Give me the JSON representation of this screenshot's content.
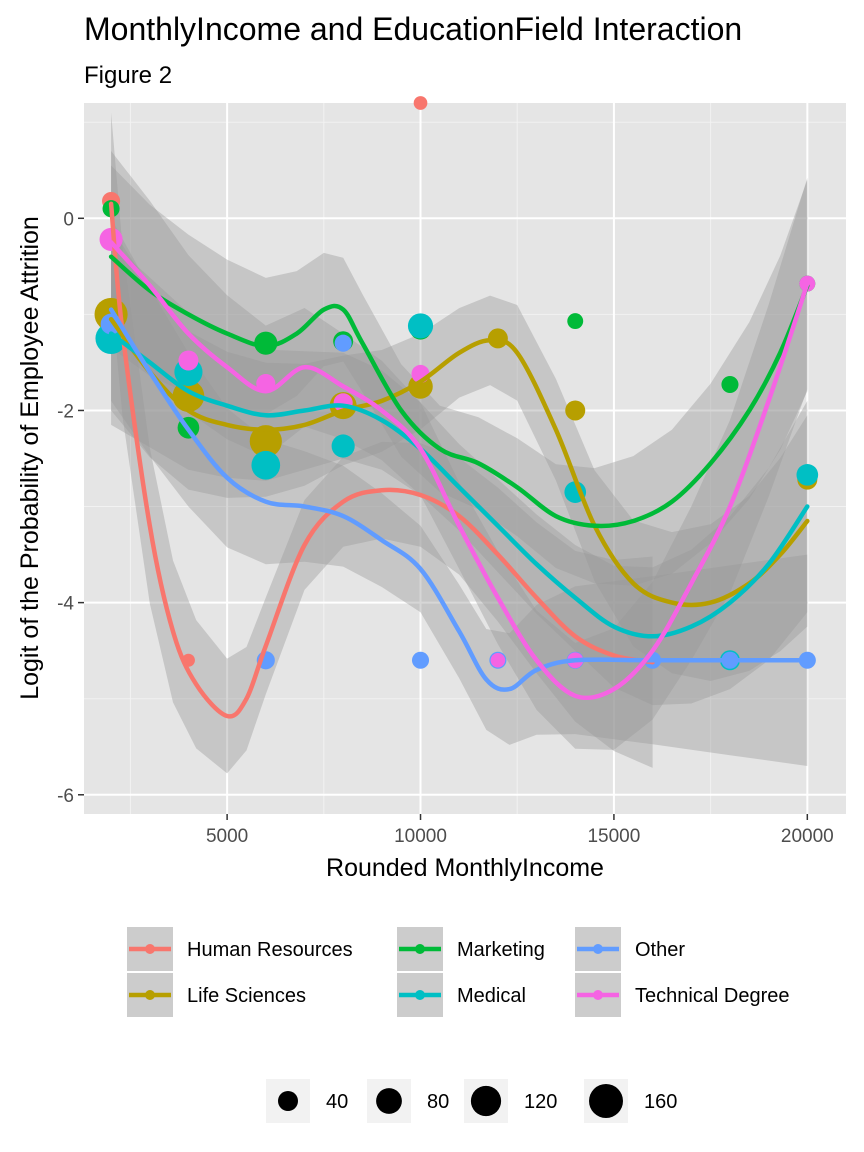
{
  "chart_data": {
    "type": "scatter",
    "title": "MonthlyIncome and EducationField Interaction",
    "subtitle": "Figure 2",
    "xlabel": "Rounded MonthlyIncome",
    "ylabel": "Logit of the Probability of Employee Attrition",
    "xlim": [
      1300,
      21000
    ],
    "ylim": [
      -6.2,
      1.2
    ],
    "x_ticks": [
      5000,
      10000,
      15000,
      20000
    ],
    "x_tick_labels": [
      "5000",
      "10000",
      "15000",
      "20000"
    ],
    "y_ticks": [
      -6,
      -4,
      -2,
      0
    ],
    "y_tick_labels": [
      "-6",
      "-4",
      "-2",
      "0"
    ],
    "grid": true,
    "background": "#e5e5e5",
    "legend_position": "bottom",
    "series": [
      {
        "name": "Human Resources",
        "color": "#f8766d",
        "points": [
          {
            "x": 2000,
            "y": 0.18,
            "n": 30
          },
          {
            "x": 4000,
            "y": -4.6,
            "n": 10
          },
          {
            "x": 10000,
            "y": 1.2,
            "n": 12
          }
        ],
        "smooth": [
          {
            "x": 2000,
            "y": 0.15
          },
          {
            "x": 2300,
            "y": -1.2
          },
          {
            "x": 3000,
            "y": -3.2
          },
          {
            "x": 3600,
            "y": -4.3
          },
          {
            "x": 4200,
            "y": -4.85
          },
          {
            "x": 5000,
            "y": -5.18
          },
          {
            "x": 5500,
            "y": -5.0
          },
          {
            "x": 6000,
            "y": -4.45
          },
          {
            "x": 7000,
            "y": -3.4
          },
          {
            "x": 8000,
            "y": -2.95
          },
          {
            "x": 9000,
            "y": -2.83
          },
          {
            "x": 10000,
            "y": -2.88
          },
          {
            "x": 11000,
            "y": -3.1
          },
          {
            "x": 12000,
            "y": -3.5
          },
          {
            "x": 13000,
            "y": -3.95
          },
          {
            "x": 14000,
            "y": -4.35
          },
          {
            "x": 15000,
            "y": -4.55
          },
          {
            "x": 16000,
            "y": -4.62
          }
        ]
      },
      {
        "name": "Life Sciences",
        "color": "#b79f00",
        "points": [
          {
            "x": 2000,
            "y": -1.0,
            "n": 150
          },
          {
            "x": 4000,
            "y": -1.85,
            "n": 135
          },
          {
            "x": 6000,
            "y": -2.32,
            "n": 140
          },
          {
            "x": 8000,
            "y": -1.95,
            "n": 90
          },
          {
            "x": 10000,
            "y": -1.75,
            "n": 70
          },
          {
            "x": 12000,
            "y": -1.25,
            "n": 40
          },
          {
            "x": 14000,
            "y": -2.0,
            "n": 40
          },
          {
            "x": 20000,
            "y": -2.72,
            "n": 40
          }
        ],
        "smooth": [
          {
            "x": 2000,
            "y": -1.05
          },
          {
            "x": 3000,
            "y": -1.6
          },
          {
            "x": 4000,
            "y": -2.0
          },
          {
            "x": 5000,
            "y": -2.15
          },
          {
            "x": 6000,
            "y": -2.2
          },
          {
            "x": 7000,
            "y": -2.15
          },
          {
            "x": 8000,
            "y": -2.0
          },
          {
            "x": 9000,
            "y": -1.9
          },
          {
            "x": 10000,
            "y": -1.7
          },
          {
            "x": 11000,
            "y": -1.4
          },
          {
            "x": 11800,
            "y": -1.27
          },
          {
            "x": 12500,
            "y": -1.4
          },
          {
            "x": 13500,
            "y": -2.2
          },
          {
            "x": 14500,
            "y": -3.2
          },
          {
            "x": 15500,
            "y": -3.8
          },
          {
            "x": 16500,
            "y": -4.0
          },
          {
            "x": 17500,
            "y": -4.0
          },
          {
            "x": 18500,
            "y": -3.8
          },
          {
            "x": 19300,
            "y": -3.5
          },
          {
            "x": 20000,
            "y": -3.15
          }
        ]
      },
      {
        "name": "Marketing",
        "color": "#00ba38",
        "points": [
          {
            "x": 2000,
            "y": 0.1,
            "n": 25
          },
          {
            "x": 4000,
            "y": -2.18,
            "n": 50
          },
          {
            "x": 6000,
            "y": -1.3,
            "n": 60
          },
          {
            "x": 8000,
            "y": -1.28,
            "n": 40
          },
          {
            "x": 10000,
            "y": -1.15,
            "n": 50
          },
          {
            "x": 14000,
            "y": -1.07,
            "n": 20
          },
          {
            "x": 18000,
            "y": -1.73,
            "n": 25
          },
          {
            "x": 20000,
            "y": -0.68,
            "n": 20
          }
        ],
        "smooth": [
          {
            "x": 2000,
            "y": -0.4
          },
          {
            "x": 3000,
            "y": -0.75
          },
          {
            "x": 4000,
            "y": -1.0
          },
          {
            "x": 5000,
            "y": -1.2
          },
          {
            "x": 6000,
            "y": -1.33
          },
          {
            "x": 6800,
            "y": -1.2
          },
          {
            "x": 7500,
            "y": -0.95
          },
          {
            "x": 8000,
            "y": -0.95
          },
          {
            "x": 8500,
            "y": -1.3
          },
          {
            "x": 9500,
            "y": -2.0
          },
          {
            "x": 10500,
            "y": -2.4
          },
          {
            "x": 11500,
            "y": -2.55
          },
          {
            "x": 12500,
            "y": -2.8
          },
          {
            "x": 13500,
            "y": -3.1
          },
          {
            "x": 14500,
            "y": -3.2
          },
          {
            "x": 15500,
            "y": -3.15
          },
          {
            "x": 16500,
            "y": -2.95
          },
          {
            "x": 17500,
            "y": -2.55
          },
          {
            "x": 18500,
            "y": -2.0
          },
          {
            "x": 19300,
            "y": -1.4
          },
          {
            "x": 20000,
            "y": -0.7
          }
        ]
      },
      {
        "name": "Medical",
        "color": "#00bfc4",
        "points": [
          {
            "x": 2000,
            "y": -1.25,
            "n": 130
          },
          {
            "x": 4000,
            "y": -1.6,
            "n": 100
          },
          {
            "x": 6000,
            "y": -2.57,
            "n": 105
          },
          {
            "x": 8000,
            "y": -2.37,
            "n": 60
          },
          {
            "x": 10000,
            "y": -1.12,
            "n": 75
          },
          {
            "x": 14000,
            "y": -2.85,
            "n": 50
          },
          {
            "x": 18000,
            "y": -4.6,
            "n": 40
          },
          {
            "x": 20000,
            "y": -2.67,
            "n": 50
          }
        ],
        "smooth": [
          {
            "x": 2000,
            "y": -1.2
          },
          {
            "x": 3000,
            "y": -1.5
          },
          {
            "x": 4000,
            "y": -1.8
          },
          {
            "x": 5000,
            "y": -1.95
          },
          {
            "x": 6000,
            "y": -2.05
          },
          {
            "x": 7000,
            "y": -2.0
          },
          {
            "x": 8000,
            "y": -1.95
          },
          {
            "x": 9000,
            "y": -2.1
          },
          {
            "x": 10000,
            "y": -2.4
          },
          {
            "x": 11000,
            "y": -2.8
          },
          {
            "x": 12000,
            "y": -3.2
          },
          {
            "x": 13000,
            "y": -3.6
          },
          {
            "x": 14000,
            "y": -3.95
          },
          {
            "x": 15000,
            "y": -4.25
          },
          {
            "x": 16000,
            "y": -4.35
          },
          {
            "x": 17000,
            "y": -4.25
          },
          {
            "x": 18000,
            "y": -4.0
          },
          {
            "x": 19000,
            "y": -3.6
          },
          {
            "x": 20000,
            "y": -3.0
          }
        ]
      },
      {
        "name": "Other",
        "color": "#619cff",
        "points": [
          {
            "x": 2000,
            "y": -1.1,
            "n": 45
          },
          {
            "x": 6000,
            "y": -4.6,
            "n": 30
          },
          {
            "x": 8000,
            "y": -1.3,
            "n": 25
          },
          {
            "x": 10000,
            "y": -4.6,
            "n": 25
          },
          {
            "x": 12000,
            "y": -4.6,
            "n": 25
          },
          {
            "x": 14000,
            "y": -4.6,
            "n": 25
          },
          {
            "x": 16000,
            "y": -4.6,
            "n": 25
          },
          {
            "x": 18000,
            "y": -4.6,
            "n": 25
          },
          {
            "x": 20000,
            "y": -4.6,
            "n": 25
          }
        ],
        "smooth": [
          {
            "x": 2000,
            "y": -0.95
          },
          {
            "x": 3000,
            "y": -1.6
          },
          {
            "x": 4000,
            "y": -2.2
          },
          {
            "x": 5000,
            "y": -2.7
          },
          {
            "x": 6000,
            "y": -2.95
          },
          {
            "x": 7000,
            "y": -3.0
          },
          {
            "x": 8000,
            "y": -3.1
          },
          {
            "x": 9000,
            "y": -3.35
          },
          {
            "x": 10000,
            "y": -3.65
          },
          {
            "x": 11000,
            "y": -4.3
          },
          {
            "x": 11700,
            "y": -4.8
          },
          {
            "x": 12300,
            "y": -4.9
          },
          {
            "x": 13000,
            "y": -4.7
          },
          {
            "x": 14000,
            "y": -4.6
          },
          {
            "x": 16000,
            "y": -4.6
          },
          {
            "x": 18000,
            "y": -4.6
          },
          {
            "x": 20000,
            "y": -4.6
          }
        ]
      },
      {
        "name": "Technical Degree",
        "color": "#f564e3",
        "points": [
          {
            "x": 2000,
            "y": -0.22,
            "n": 60
          },
          {
            "x": 4000,
            "y": -1.48,
            "n": 40
          },
          {
            "x": 6000,
            "y": -1.72,
            "n": 35
          },
          {
            "x": 8000,
            "y": -1.92,
            "n": 35
          },
          {
            "x": 10000,
            "y": -1.62,
            "n": 30
          },
          {
            "x": 12000,
            "y": -4.6,
            "n": 15
          },
          {
            "x": 14000,
            "y": -4.6,
            "n": 20
          },
          {
            "x": 20000,
            "y": -0.68,
            "n": 20
          }
        ],
        "smooth": [
          {
            "x": 2000,
            "y": -0.25
          },
          {
            "x": 3000,
            "y": -0.7
          },
          {
            "x": 4000,
            "y": -1.2
          },
          {
            "x": 5000,
            "y": -1.55
          },
          {
            "x": 6000,
            "y": -1.8
          },
          {
            "x": 7000,
            "y": -1.55
          },
          {
            "x": 8000,
            "y": -1.75
          },
          {
            "x": 9000,
            "y": -2.0
          },
          {
            "x": 10000,
            "y": -2.4
          },
          {
            "x": 11000,
            "y": -3.2
          },
          {
            "x": 12000,
            "y": -3.95
          },
          {
            "x": 13000,
            "y": -4.6
          },
          {
            "x": 14000,
            "y": -4.97
          },
          {
            "x": 15000,
            "y": -4.9
          },
          {
            "x": 16000,
            "y": -4.5
          },
          {
            "x": 17000,
            "y": -3.8
          },
          {
            "x": 18000,
            "y": -3.0
          },
          {
            "x": 19000,
            "y": -1.9
          },
          {
            "x": 20000,
            "y": -0.68
          }
        ]
      }
    ],
    "size_legend": [
      {
        "label": "40",
        "value": 40
      },
      {
        "label": "80",
        "value": 80
      },
      {
        "label": "120",
        "value": 120
      },
      {
        "label": "160",
        "value": 160
      }
    ]
  }
}
